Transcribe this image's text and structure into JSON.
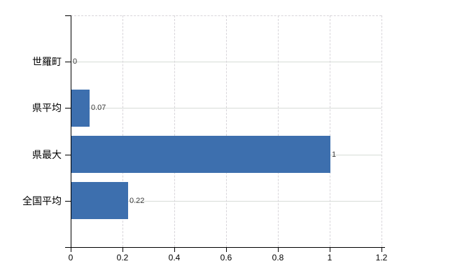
{
  "chart_data": {
    "type": "bar",
    "orientation": "horizontal",
    "title": "",
    "categories": [
      "世羅町",
      "県平均",
      "県最大",
      "全国平均"
    ],
    "values": [
      0,
      0.07,
      1,
      0.22
    ],
    "value_labels": [
      "0",
      "0.07",
      "1",
      "0.22"
    ],
    "xlabel": "",
    "ylabel": "",
    "xlim": [
      0,
      1.2
    ],
    "xticks": [
      0,
      0.2,
      0.4,
      0.6,
      0.8,
      1,
      1.2
    ],
    "xtick_labels": [
      "0",
      "0.2",
      "0.4",
      "0.6",
      "0.8",
      "1",
      "1.2"
    ],
    "grid": true,
    "legend": false,
    "gridline_style": {
      "horizontal": "solid",
      "vertical": "dashed"
    },
    "colors": {
      "bar": "#3d6fae",
      "h_gridline": "#d7dcd7",
      "v_gridline": "#d8d5da",
      "axis": "#000000",
      "value_label": "#3a3a3a",
      "tick_label": "#000000",
      "background": "#ffffff"
    }
  }
}
